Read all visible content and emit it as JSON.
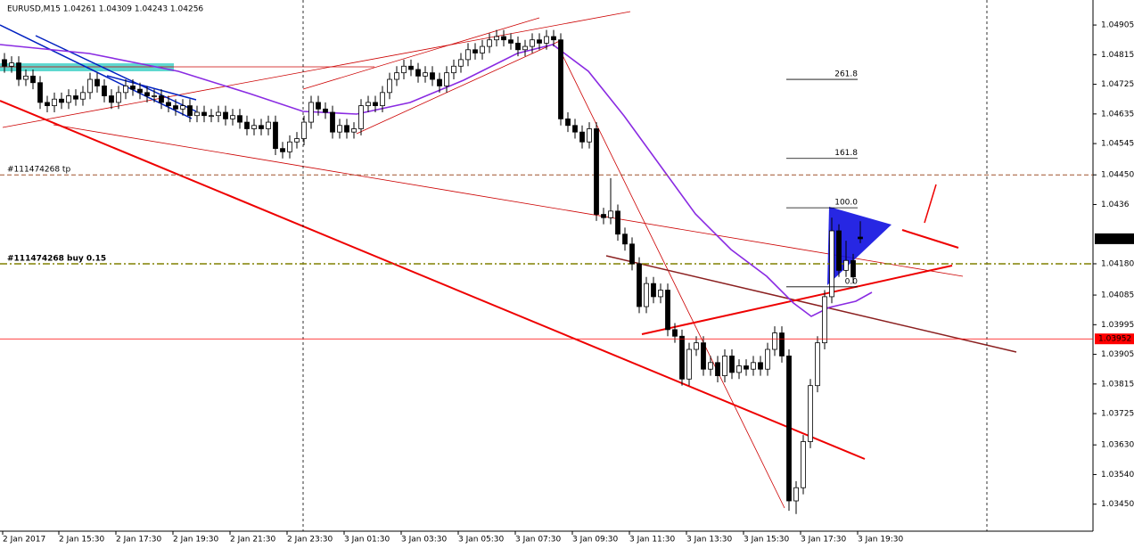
{
  "chart_data": {
    "type": "candlestick",
    "title": "EURUSD,M15  1.04261 1.04309 1.04243 1.04256",
    "open": [
      1.048,
      1.0478,
      1.0479,
      1.0474,
      1.0475,
      1.0473,
      1.0467,
      1.0466,
      1.0468,
      1.0467,
      1.0469,
      1.0468,
      1.047,
      1.0474,
      1.0472,
      1.0469,
      1.0467,
      1.047,
      1.0472,
      1.0471,
      1.047,
      1.0469,
      1.0469,
      1.0467,
      1.0466,
      1.0465,
      1.0466,
      1.0463,
      1.0464,
      1.0463,
      1.0463,
      1.0464,
      1.0462,
      1.0463,
      1.0461,
      1.0459,
      1.046,
      1.0459,
      1.0461,
      1.0453,
      1.0452,
      1.0455,
      1.0456,
      1.0461,
      1.0467,
      1.0465,
      1.0464,
      1.0458,
      1.046,
      1.0458,
      1.0459,
      1.0466,
      1.0467,
      1.0466,
      1.047,
      1.0474,
      1.0476,
      1.0478,
      1.0477,
      1.0475,
      1.0476,
      1.0474,
      1.0472,
      1.0476,
      1.0478,
      1.048,
      1.0483,
      1.0482,
      1.0484,
      1.0486,
      1.0487,
      1.0486,
      1.0485,
      1.0483,
      1.0484,
      1.0486,
      1.0485,
      1.0487,
      1.0486,
      1.0462,
      1.046,
      1.0458,
      1.0455,
      1.0459,
      1.0433,
      1.0432,
      1.0434,
      1.0427,
      1.0424,
      1.0418,
      1.0405,
      1.0412,
      1.0408,
      1.041,
      1.0398,
      1.0396,
      1.0383,
      1.0392,
      1.0394,
      1.0386,
      1.0388,
      1.0384,
      1.039,
      1.0385,
      1.0387,
      1.0386,
      1.0388,
      1.0386,
      1.0392,
      1.0397,
      1.039,
      1.0346,
      1.035,
      1.0364,
      1.0381,
      1.0394,
      1.0408,
      1.0428,
      1.0416,
      1.0419,
      1.04261
    ],
    "high": [
      1.0482,
      1.0481,
      1.0481,
      1.0477,
      1.0477,
      1.0475,
      1.0469,
      1.047,
      1.047,
      1.0471,
      1.0471,
      1.0472,
      1.0476,
      1.0476,
      1.0474,
      1.0471,
      1.0472,
      1.0474,
      1.0474,
      1.0473,
      1.0472,
      1.0471,
      1.0471,
      1.0469,
      1.0468,
      1.0468,
      1.0468,
      1.0466,
      1.0466,
      1.0465,
      1.0466,
      1.0466,
      1.0465,
      1.0465,
      1.0463,
      1.0462,
      1.0462,
      1.0463,
      1.0463,
      1.0455,
      1.0457,
      1.0458,
      1.0463,
      1.0469,
      1.0469,
      1.0467,
      1.0466,
      1.0462,
      1.0462,
      1.0461,
      1.0468,
      1.0469,
      1.0469,
      1.0472,
      1.0476,
      1.0478,
      1.048,
      1.048,
      1.0479,
      1.0478,
      1.0478,
      1.0476,
      1.0478,
      1.048,
      1.0482,
      1.0485,
      1.0485,
      1.0486,
      1.0488,
      1.0489,
      1.0489,
      1.0488,
      1.0487,
      1.0486,
      1.0488,
      1.0488,
      1.0489,
      1.0489,
      1.0488,
      1.0464,
      1.0462,
      1.046,
      1.0461,
      1.0461,
      1.0435,
      1.0444,
      1.0436,
      1.0429,
      1.0426,
      1.042,
      1.0414,
      1.0414,
      1.0412,
      1.0412,
      1.04,
      1.0398,
      1.0394,
      1.0396,
      1.0396,
      1.039,
      1.039,
      1.0392,
      1.0392,
      1.0389,
      1.0389,
      1.039,
      1.039,
      1.0394,
      1.0399,
      1.0399,
      1.0392,
      1.0352,
      1.0366,
      1.0383,
      1.0396,
      1.041,
      1.0432,
      1.043,
      1.0425,
      1.0421,
      1.04309
    ],
    "low": [
      1.0476,
      1.0476,
      1.0472,
      1.0472,
      1.0471,
      1.0465,
      1.0464,
      1.0464,
      1.0465,
      1.0465,
      1.0466,
      1.0466,
      1.0468,
      1.047,
      1.0467,
      1.0465,
      1.0465,
      1.0468,
      1.0469,
      1.0468,
      1.0467,
      1.0467,
      1.0465,
      1.0464,
      1.0463,
      1.0463,
      1.0461,
      1.0461,
      1.0461,
      1.0461,
      1.0461,
      1.046,
      1.046,
      1.0459,
      1.0457,
      1.0457,
      1.0457,
      1.0457,
      1.0451,
      1.045,
      1.045,
      1.0453,
      1.0454,
      1.0459,
      1.0463,
      1.0462,
      1.0456,
      1.0456,
      1.0456,
      1.0456,
      1.0457,
      1.0464,
      1.0464,
      1.0464,
      1.0468,
      1.0472,
      1.0474,
      1.0475,
      1.0473,
      1.0473,
      1.0472,
      1.047,
      1.047,
      1.0474,
      1.0476,
      1.0478,
      1.048,
      1.048,
      1.0482,
      1.0484,
      1.0484,
      1.0483,
      1.0481,
      1.0481,
      1.0482,
      1.0483,
      1.0483,
      1.0484,
      1.046,
      1.0458,
      1.0456,
      1.0453,
      1.0453,
      1.0431,
      1.043,
      1.043,
      1.0425,
      1.0422,
      1.0416,
      1.0403,
      1.0403,
      1.0406,
      1.0406,
      1.0396,
      1.0394,
      1.0381,
      1.0381,
      1.039,
      1.0384,
      1.0384,
      1.0382,
      1.0382,
      1.0383,
      1.0383,
      1.0384,
      1.0384,
      1.0384,
      1.0384,
      1.039,
      1.0388,
      1.0343,
      1.0342,
      1.0348,
      1.0362,
      1.0379,
      1.0392,
      1.0406,
      1.0414,
      1.0414,
      1.0412,
      1.04243
    ],
    "close": [
      1.0478,
      1.0479,
      1.0474,
      1.0475,
      1.0473,
      1.0467,
      1.0466,
      1.0468,
      1.0467,
      1.0469,
      1.0468,
      1.047,
      1.0474,
      1.0472,
      1.0469,
      1.0467,
      1.047,
      1.0472,
      1.0471,
      1.047,
      1.0469,
      1.0469,
      1.0467,
      1.0466,
      1.0465,
      1.0466,
      1.0463,
      1.0464,
      1.0463,
      1.0463,
      1.0464,
      1.0462,
      1.0463,
      1.0461,
      1.0459,
      1.046,
      1.0459,
      1.0461,
      1.0453,
      1.0452,
      1.0455,
      1.0456,
      1.0461,
      1.0467,
      1.0465,
      1.0464,
      1.0458,
      1.046,
      1.0458,
      1.0459,
      1.0466,
      1.0467,
      1.0466,
      1.047,
      1.0474,
      1.0476,
      1.0478,
      1.0477,
      1.0475,
      1.0476,
      1.0474,
      1.0472,
      1.0476,
      1.0478,
      1.048,
      1.0483,
      1.0482,
      1.0484,
      1.0486,
      1.0487,
      1.0486,
      1.0485,
      1.0483,
      1.0484,
      1.0486,
      1.0485,
      1.0487,
      1.0486,
      1.0462,
      1.046,
      1.0458,
      1.0455,
      1.0459,
      1.0433,
      1.0432,
      1.0434,
      1.0427,
      1.0424,
      1.0418,
      1.0405,
      1.0412,
      1.0408,
      1.041,
      1.0398,
      1.0396,
      1.0383,
      1.0392,
      1.0394,
      1.0386,
      1.0388,
      1.0384,
      1.039,
      1.0385,
      1.0387,
      1.0386,
      1.0388,
      1.0386,
      1.0392,
      1.0397,
      1.039,
      1.0346,
      1.035,
      1.0364,
      1.0381,
      1.0394,
      1.0408,
      1.0428,
      1.0416,
      1.0419,
      1.0414,
      1.04256
    ],
    "categories": [
      "2 Jan 2017",
      "2 Jan 15:30",
      "2 Jan 17:30",
      "2 Jan 19:30",
      "2 Jan 21:30",
      "2 Jan 23:30",
      "3 Jan 01:30",
      "3 Jan 03:30",
      "3 Jan 05:30",
      "3 Jan 07:30",
      "3 Jan 09:30",
      "3 Jan 11:30",
      "3 Jan 13:30",
      "3 Jan 15:30",
      "3 Jan 17:30",
      "3 Jan 19:30"
    ],
    "ylim": [
      1.03368,
      1.04981
    ],
    "yticks": [
      1.04905,
      1.04815,
      1.04725,
      1.04635,
      1.04545,
      {
        "value": 1.0445,
        "label": "1.04450"
      },
      1.0436,
      {
        "value": 1.0418,
        "label": "1.04180"
      },
      1.04085,
      1.03995,
      1.03905,
      1.03815,
      1.03725,
      {
        "value": 1.0363,
        "label": "1.03630"
      },
      {
        "value": 1.0354,
        "label": "1.03540"
      },
      {
        "value": 1.0345,
        "label": "1.03450"
      }
    ],
    "bull_color": "#ffffff",
    "bear_color": "#000000",
    "price_lines": [
      {
        "value": 1.03952,
        "label": "1.03952",
        "color": "#ff0000"
      },
      {
        "value": 1.04256,
        "label": "1.04256",
        "color": "#000000"
      }
    ],
    "order_lines": [
      {
        "value": 1.0445,
        "label": "#111474268 tp",
        "color": "#a0522d"
      },
      {
        "value": 1.0418,
        "label": "#111474268 buy 0.15",
        "color": "#808000"
      }
    ],
    "fibo": [
      {
        "value": 1.0474,
        "label": "261.8"
      },
      {
        "value": 1.045,
        "label": "161.8"
      },
      {
        "value": 1.0435,
        "label": "100.0"
      },
      {
        "value": 1.0411,
        "label": "0.0"
      }
    ]
  }
}
